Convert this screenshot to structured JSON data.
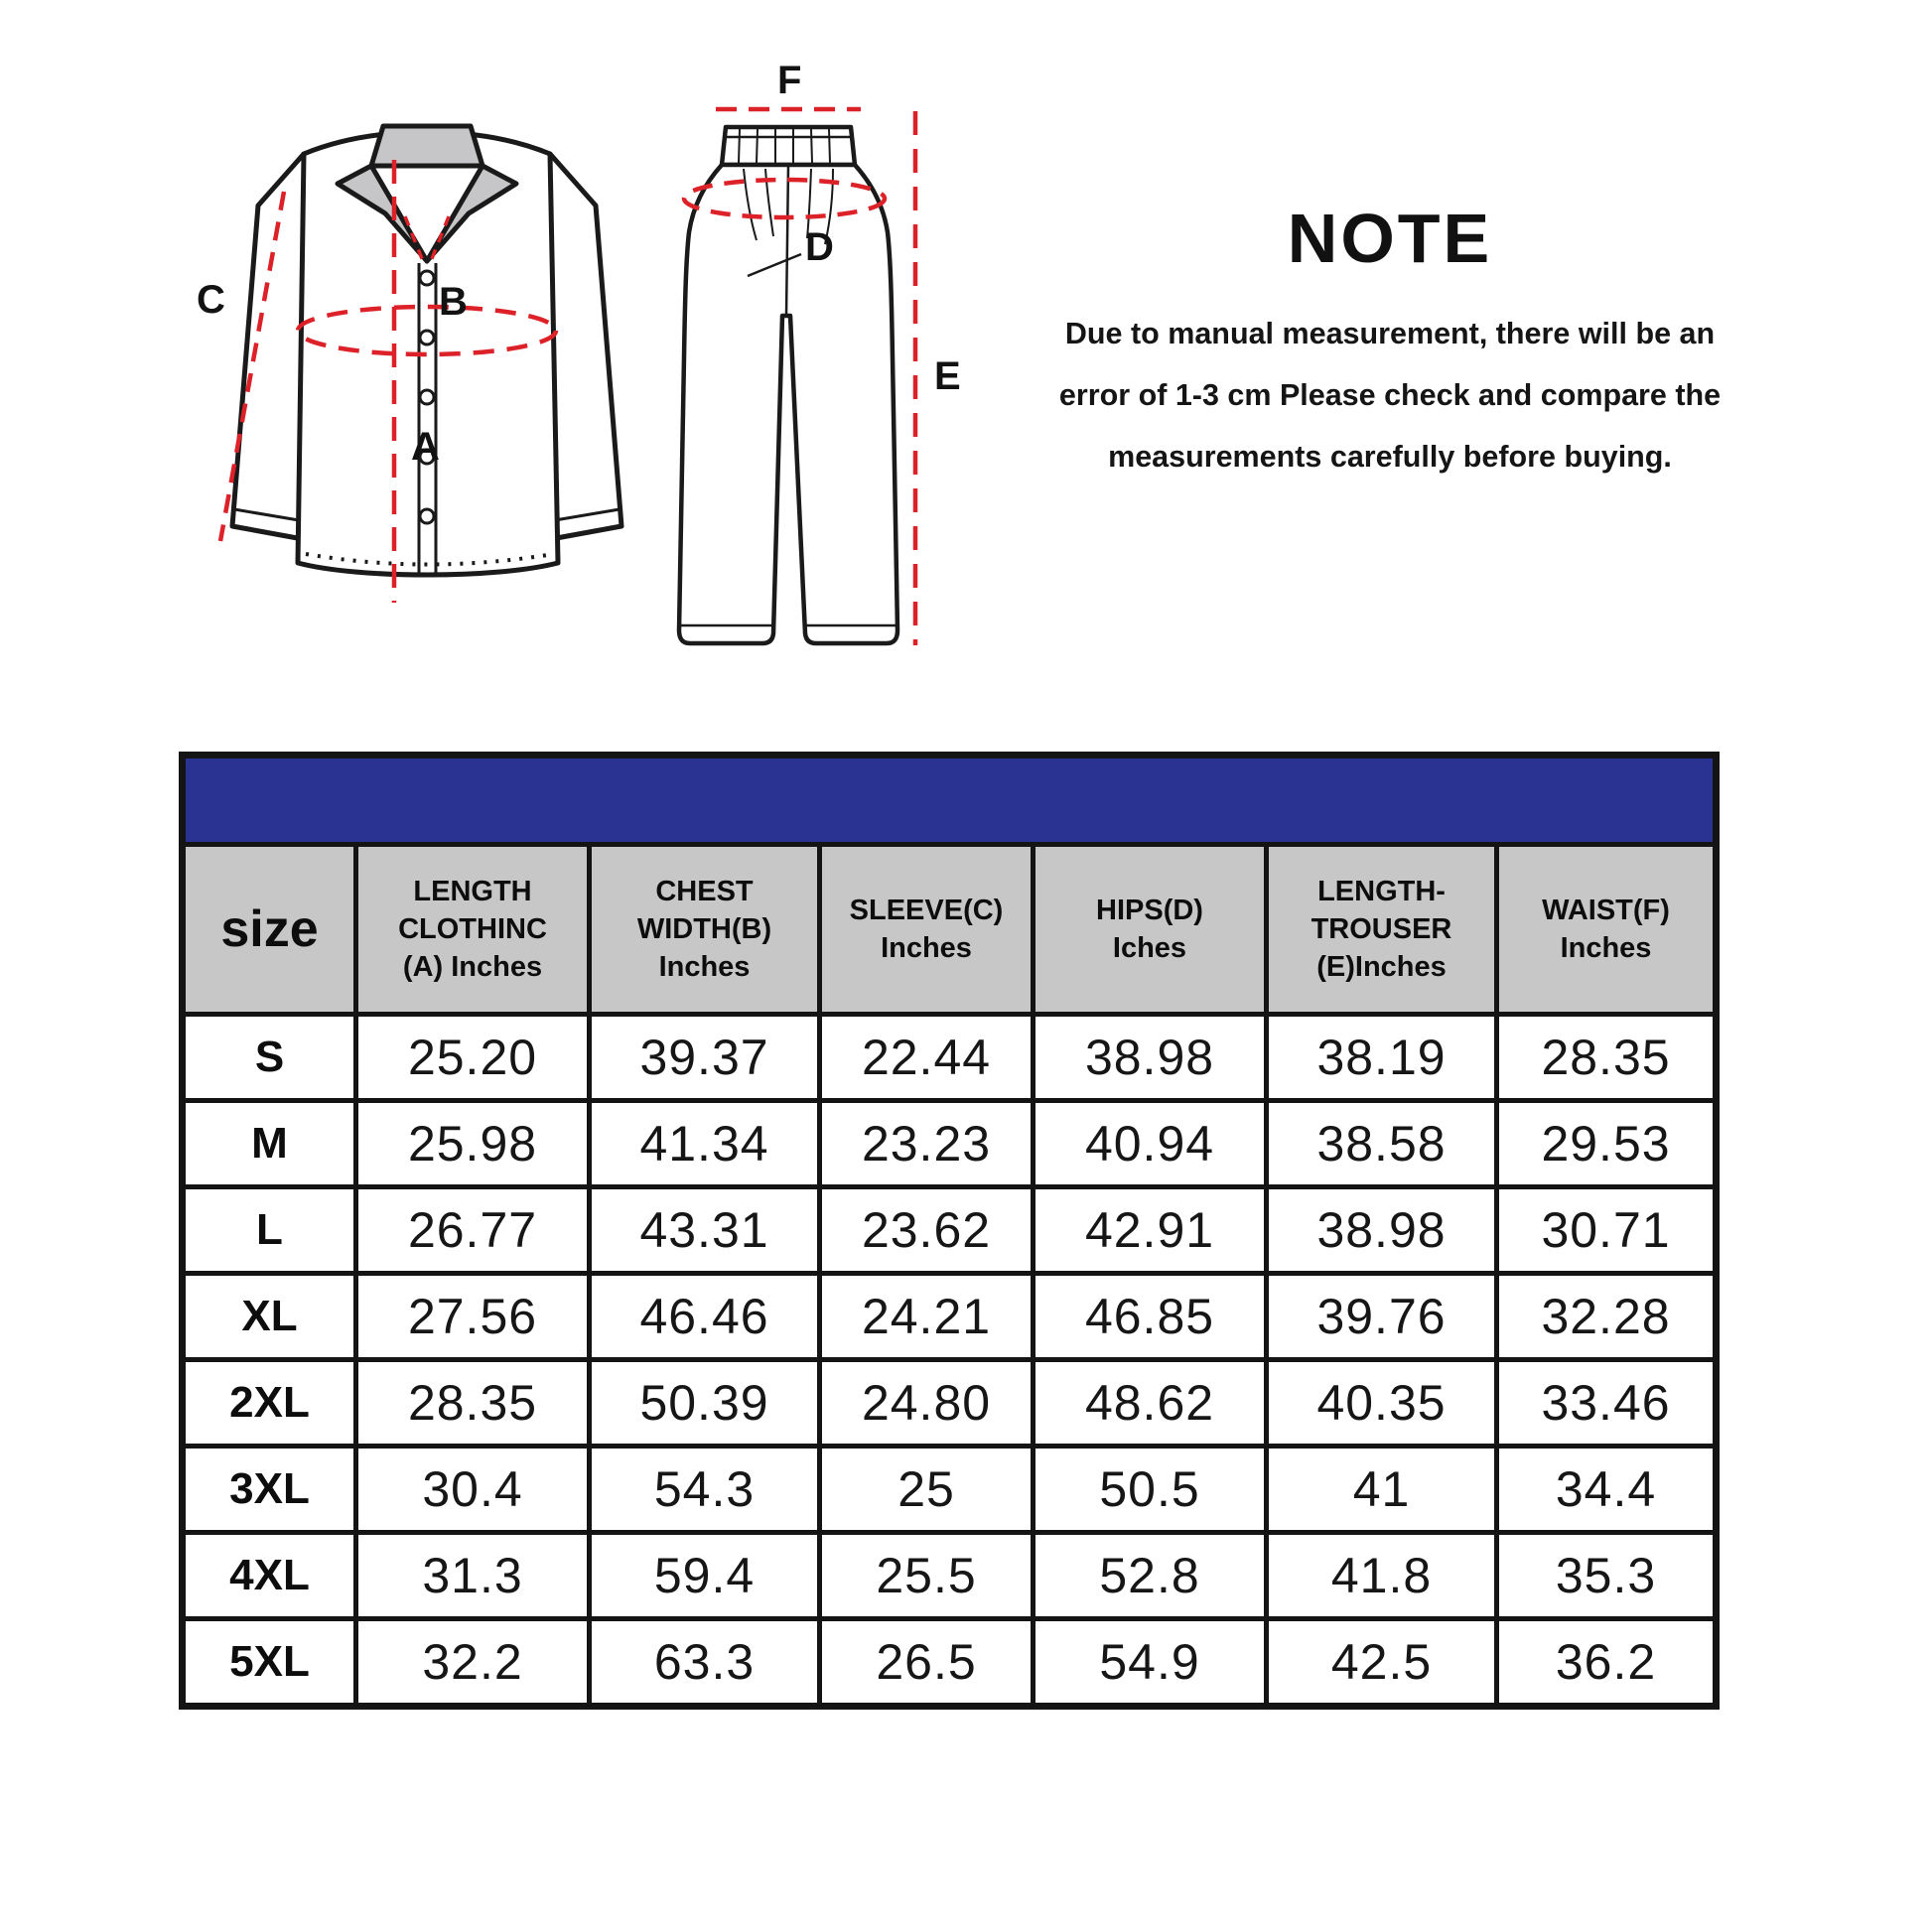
{
  "note": {
    "title": "NOTE",
    "lines": [
      "Due to manual measurement, there will be an",
      "error of 1-3 cm Please check and compare the",
      "measurements carefully before buying."
    ]
  },
  "diagram": {
    "shirt": {
      "label_a": "A",
      "label_b": "B",
      "label_c": "C"
    },
    "trousers": {
      "label_d": "D",
      "label_e": "E",
      "label_f": "F"
    }
  },
  "size_chart": {
    "columns": [
      {
        "lines": [
          "size"
        ]
      },
      {
        "lines": [
          "LENGTH",
          "CLOTHINC",
          "(A) Inches"
        ]
      },
      {
        "lines": [
          "CHEST",
          "WIDTH(B)",
          "Inches"
        ]
      },
      {
        "lines": [
          "SLEEVE(C)",
          "Inches"
        ]
      },
      {
        "lines": [
          "HIPS(D)",
          "Iches"
        ]
      },
      {
        "lines": [
          "LENGTH-",
          "TROUSER",
          "(E)Inches"
        ]
      },
      {
        "lines": [
          "WAIST(F)",
          "Inches"
        ]
      }
    ],
    "rows": [
      {
        "size": "S",
        "values": [
          "25.20",
          "39.37",
          "22.44",
          "38.98",
          "38.19",
          "28.35"
        ]
      },
      {
        "size": "M",
        "values": [
          "25.98",
          "41.34",
          "23.23",
          "40.94",
          "38.58",
          "29.53"
        ]
      },
      {
        "size": "L",
        "values": [
          "26.77",
          "43.31",
          "23.62",
          "42.91",
          "38.98",
          "30.71"
        ]
      },
      {
        "size": "XL",
        "values": [
          "27.56",
          "46.46",
          "24.21",
          "46.85",
          "39.76",
          "32.28"
        ]
      },
      {
        "size": "2XL",
        "values": [
          "28.35",
          "50.39",
          "24.80",
          "48.62",
          "40.35",
          "33.46"
        ]
      },
      {
        "size": "3XL",
        "values": [
          "30.4",
          "54.3",
          "25",
          "50.5",
          "41",
          "34.4"
        ]
      },
      {
        "size": "4XL",
        "values": [
          "31.3",
          "59.4",
          "25.5",
          "52.8",
          "41.8",
          "35.3"
        ]
      },
      {
        "size": "5XL",
        "values": [
          "32.2",
          "63.3",
          "26.5",
          "54.9",
          "42.5",
          "36.2"
        ]
      }
    ]
  },
  "colors": {
    "banner_blue": "#2b3392",
    "header_gray": "#c7c7c7",
    "measure_red": "#dd2128",
    "line_black": "#141414"
  }
}
